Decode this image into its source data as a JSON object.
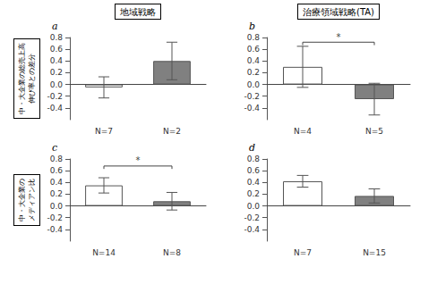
{
  "chart_data": [
    {
      "type": "bar",
      "title": "地域戦略",
      "label": "a",
      "ylabel": "中・大企業の総売上高\n伸び率との差分",
      "categories": [
        "N=7",
        "N=2"
      ],
      "values": [
        -0.05,
        0.4
      ],
      "errors": [
        0.18,
        0.32
      ],
      "colors": [
        "#ffffff",
        "#808080"
      ],
      "ylim": [
        -0.6,
        0.8
      ],
      "yticks": [
        -0.4,
        -0.2,
        {
          "value": 0.0,
          "label": "0.0"
        },
        0.2,
        0.4,
        0.6,
        0.8
      ],
      "grid": false
    },
    {
      "type": "bar",
      "title": "治療領域戦略(TA)",
      "label": "b",
      "categories": [
        "N=4",
        "N=5"
      ],
      "values": [
        0.3,
        -0.25
      ],
      "errors": [
        0.35,
        0.27
      ],
      "colors": [
        "#ffffff",
        "#808080"
      ],
      "significance": {
        "label": "*",
        "y": 0.72,
        "bar_y": 0.67
      },
      "ylim": [
        -0.6,
        0.8
      ],
      "yticks": [
        -0.4,
        -0.2,
        {
          "value": 0.0,
          "label": "0.0"
        },
        0.2,
        0.4,
        0.6,
        0.8
      ],
      "grid": false
    },
    {
      "type": "bar",
      "label": "c",
      "ylabel": "中・大企業の\nメディアン比",
      "categories": [
        "N=14",
        "N=8"
      ],
      "values": [
        0.35,
        0.08
      ],
      "errors": [
        0.13,
        0.15
      ],
      "colors": [
        "#ffffff",
        "#808080"
      ],
      "significance": {
        "label": "*",
        "y": 0.68,
        "bar_y": 0.63
      },
      "ylim": [
        -0.6,
        0.8
      ],
      "yticks": [
        -0.4,
        -0.2,
        {
          "value": 0.0,
          "label": "0.0"
        },
        0.2,
        0.4,
        0.6,
        0.8
      ],
      "grid": false
    },
    {
      "type": "bar",
      "label": "d",
      "categories": [
        "N=7",
        "N=15"
      ],
      "values": [
        0.42,
        0.17
      ],
      "errors": [
        0.1,
        0.12
      ],
      "colors": [
        "#ffffff",
        "#808080"
      ],
      "ylim": [
        -0.6,
        0.8
      ],
      "yticks": [
        -0.4,
        -0.2,
        {
          "value": 0.0,
          "label": "0.0"
        },
        0.2,
        0.4,
        0.6,
        0.8
      ],
      "grid": false
    }
  ]
}
